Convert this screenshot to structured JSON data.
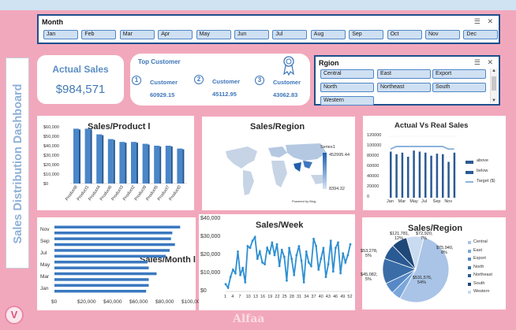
{
  "dashboard_title": "Sales Distribution Dashboard",
  "month_slicer": {
    "title": "Month",
    "items": [
      "Jan",
      "Feb",
      "Mar",
      "Apr",
      "May",
      "Jun",
      "Jul",
      "Aug",
      "Sep",
      "Oct",
      "Nov",
      "Dec"
    ]
  },
  "region_slicer": {
    "title": "Rgion",
    "items": [
      "Central",
      "East",
      "Export",
      "North",
      "Northeast",
      "South",
      "Western"
    ]
  },
  "kpi": {
    "label": "Actual Sales",
    "value": "$984,571"
  },
  "top_customer": {
    "title": "Top Customer",
    "customers": [
      {
        "rank": "1",
        "label": "Customer",
        "value": "60929.15"
      },
      {
        "rank": "2",
        "label": "Customer",
        "value": "45112.95"
      },
      {
        "rank": "3",
        "label": "Customer",
        "value": "43062.83"
      }
    ]
  },
  "colors": {
    "accent": "#3d75b8",
    "bar": "#4a86c9",
    "background": "#f2a8bc",
    "line": "#2e8fd1"
  },
  "chart_data": [
    {
      "type": "bar",
      "title": "Sales/Product l",
      "categories": [
        "Product8",
        "Product1",
        "Product4",
        "Product6",
        "Product3",
        "Product2",
        "Product9",
        "Product5",
        "Product7",
        "Product0"
      ],
      "values": [
        58000,
        58000,
        52000,
        47000,
        44000,
        44000,
        42000,
        40000,
        40000,
        37000
      ],
      "yticks": [
        "$60,000",
        "$50,000",
        "$40,000",
        "$30,000",
        "$20,000",
        "$10,000",
        "$0"
      ],
      "ylim": [
        0,
        60000
      ]
    },
    {
      "type": "map",
      "title": "Sales/Region",
      "legend_title": "Series1",
      "legend_max": "452995.44",
      "legend_min": "8394.32",
      "credit": "Powered by Bing"
    },
    {
      "type": "bar",
      "title": "Actual Vs Real Sales",
      "categories": [
        "Jan",
        "Feb",
        "Mar",
        "Apr",
        "May",
        "Jun",
        "Jul",
        "Aug",
        "Sep",
        "Oct",
        "Nov",
        "Dec"
      ],
      "x_tick_labels": [
        "Jan",
        "Mar",
        "May",
        "Jul",
        "Sep",
        "Nov"
      ],
      "yticks": [
        "120000",
        "100000",
        "80000",
        "60000",
        "40000",
        "20000",
        "0"
      ],
      "ylim": [
        0,
        120000
      ],
      "series": [
        {
          "name": "above",
          "values": [
            90000,
            0,
            88000,
            0,
            92000,
            90000,
            0,
            82000,
            0,
            85000,
            0,
            88000
          ]
        },
        {
          "name": "below",
          "values": [
            0,
            85000,
            0,
            80000,
            0,
            0,
            88000,
            0,
            86000,
            0,
            70000,
            0
          ]
        },
        {
          "name": "Target ($)",
          "values": [
            95000,
            100000,
            100000,
            100000,
            100000,
            100000,
            100000,
            100000,
            100000,
            100000,
            95000,
            95000
          ]
        }
      ]
    },
    {
      "type": "bar",
      "title": "Sales/Month l",
      "categories": [
        "Jan",
        "Feb",
        "Mar",
        "Apr",
        "May",
        "Jun",
        "Jul",
        "Aug",
        "Sep",
        "Oct",
        "Nov",
        "Dec"
      ],
      "y_tick_labels": [
        "Nov",
        "Sep",
        "Jul",
        "May",
        "Mar",
        "Jan"
      ],
      "values": [
        70000,
        72000,
        72000,
        78000,
        72000,
        71000,
        85000,
        88000,
        92000,
        89000,
        90000,
        96000
      ],
      "xticks": [
        "$0",
        "$20,000",
        "$40,000",
        "$60,000",
        "$80,000",
        "$100,000"
      ],
      "xlim": [
        0,
        100000
      ]
    },
    {
      "type": "line",
      "title": "Sales/Week",
      "x_tick_labels": [
        "1",
        "4",
        "7",
        "10",
        "13",
        "16",
        "19",
        "22",
        "25",
        "28",
        "31",
        "34",
        "37",
        "40",
        "43",
        "46",
        "49",
        "52"
      ],
      "values": [
        4000,
        2000,
        8000,
        12000,
        10000,
        22000,
        9000,
        13000,
        5000,
        25000,
        24000,
        28000,
        30000,
        18000,
        22000,
        16000,
        15000,
        24000,
        21000,
        27000,
        20000,
        26000,
        14000,
        23000,
        19000,
        6000,
        24000,
        18000,
        9000,
        20000,
        25000,
        17000,
        5000,
        22000,
        16000,
        14000,
        29000,
        25000,
        12000,
        18000,
        24000,
        8000,
        15000,
        28000,
        11000,
        24000,
        27000,
        10000,
        21000,
        16000,
        20000,
        26000
      ],
      "yticks": [
        "$40,000",
        "$30,000",
        "$20,000",
        "$10,000",
        "$0"
      ],
      "ylim": [
        0,
        40000
      ]
    },
    {
      "type": "pie",
      "title": "Sales/Region",
      "slices": [
        {
          "name": "Central",
          "value": 531576,
          "label": "$531,576, 54%",
          "color": "#a9c4e6"
        },
        {
          "name": "East",
          "value": 45082,
          "label": "$45,082, 5%",
          "color": "#7aa7db"
        },
        {
          "name": "Export",
          "value": 53278,
          "label": "$53,278, 5%",
          "color": "#5689c6"
        },
        {
          "name": "North",
          "value": 121781,
          "label": "$121,781, 12%",
          "color": "#3a6da8"
        },
        {
          "name": "Northeast",
          "value": 72920,
          "label": "$72,920, 7%",
          "color": "#2a5a93"
        },
        {
          "name": "South",
          "value": 75940,
          "label": "$75,940, 8%",
          "color": "#1f4879"
        },
        {
          "name": "Western",
          "value": 84000,
          "label": "",
          "color": "#c9dbf0"
        }
      ],
      "legend": [
        "Central",
        "East",
        "Export",
        "North",
        "Northeast",
        "South",
        "Western"
      ]
    }
  ],
  "watermark": "Alfaa"
}
